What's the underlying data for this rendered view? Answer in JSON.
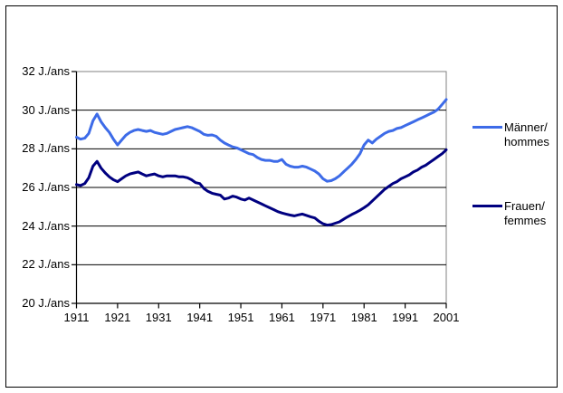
{
  "window": {
    "background": "#ffffff",
    "border_color": "#000000"
  },
  "chart_data": {
    "type": "line",
    "title": "",
    "xlabel": "",
    "ylabel": "J./ans",
    "x_start": 1911,
    "x_end": 2001,
    "x_tick_step": 10,
    "x_tick_labels": [
      "1911",
      "1921",
      "1931",
      "1941",
      "1951",
      "1961",
      "1971",
      "1981",
      "1991",
      "2001"
    ],
    "y_tick_values": [
      32,
      30,
      28,
      26,
      24,
      22,
      20
    ],
    "y_tick_labels": [
      "32 J./ans",
      "30 J./ans",
      "28 J./ans",
      "26 J./ans",
      "24 J./ans",
      "22 J./ans",
      "20 J./ans"
    ],
    "ylim": [
      20,
      32
    ],
    "grid": "horizontal-black",
    "legend_position": "right",
    "colors": {
      "gridline": "#000000",
      "axis": "#000000",
      "plot_border": "#808080"
    },
    "series": [
      {
        "name": "Männer/hommes",
        "label_line1": "Männer/",
        "label_line2": "hommes",
        "color": "#3D6BE8",
        "values": [
          28.6,
          28.5,
          28.55,
          28.8,
          29.45,
          29.8,
          29.4,
          29.1,
          28.85,
          28.5,
          28.2,
          28.45,
          28.7,
          28.85,
          28.95,
          29.0,
          28.95,
          28.9,
          28.95,
          28.85,
          28.8,
          28.75,
          28.8,
          28.9,
          29.0,
          29.05,
          29.1,
          29.15,
          29.1,
          29.0,
          28.9,
          28.75,
          28.7,
          28.72,
          28.65,
          28.45,
          28.3,
          28.2,
          28.1,
          28.05,
          27.95,
          27.85,
          27.75,
          27.7,
          27.55,
          27.45,
          27.4,
          27.4,
          27.35,
          27.35,
          27.45,
          27.2,
          27.1,
          27.05,
          27.05,
          27.1,
          27.05,
          26.95,
          26.85,
          26.7,
          26.45,
          26.32,
          26.35,
          26.45,
          26.6,
          26.8,
          27.0,
          27.2,
          27.45,
          27.75,
          28.2,
          28.45,
          28.3,
          28.5,
          28.65,
          28.8,
          28.9,
          28.95,
          29.05,
          29.1,
          29.2,
          29.3,
          29.4,
          29.5,
          29.6,
          29.7,
          29.8,
          29.9,
          30.05,
          30.3,
          30.55
        ]
      },
      {
        "name": "Frauen/femmes",
        "label_line1": "Frauen/",
        "label_line2": "femmes",
        "color": "#000080",
        "values": [
          26.15,
          26.1,
          26.2,
          26.5,
          27.1,
          27.35,
          27.0,
          26.75,
          26.55,
          26.4,
          26.3,
          26.45,
          26.6,
          26.7,
          26.75,
          26.8,
          26.7,
          26.6,
          26.65,
          26.7,
          26.6,
          26.55,
          26.6,
          26.6,
          26.6,
          26.55,
          26.55,
          26.5,
          26.4,
          26.25,
          26.2,
          25.95,
          25.8,
          25.7,
          25.65,
          25.6,
          25.4,
          25.45,
          25.55,
          25.5,
          25.4,
          25.35,
          25.45,
          25.35,
          25.25,
          25.15,
          25.05,
          24.95,
          24.85,
          24.75,
          24.68,
          24.62,
          24.57,
          24.53,
          24.58,
          24.62,
          24.55,
          24.48,
          24.42,
          24.25,
          24.12,
          24.05,
          24.08,
          24.15,
          24.22,
          24.35,
          24.48,
          24.6,
          24.7,
          24.82,
          24.95,
          25.1,
          25.3,
          25.5,
          25.7,
          25.9,
          26.05,
          26.2,
          26.3,
          26.45,
          26.55,
          26.65,
          26.8,
          26.9,
          27.05,
          27.15,
          27.3,
          27.45,
          27.6,
          27.75,
          27.95
        ]
      }
    ]
  }
}
